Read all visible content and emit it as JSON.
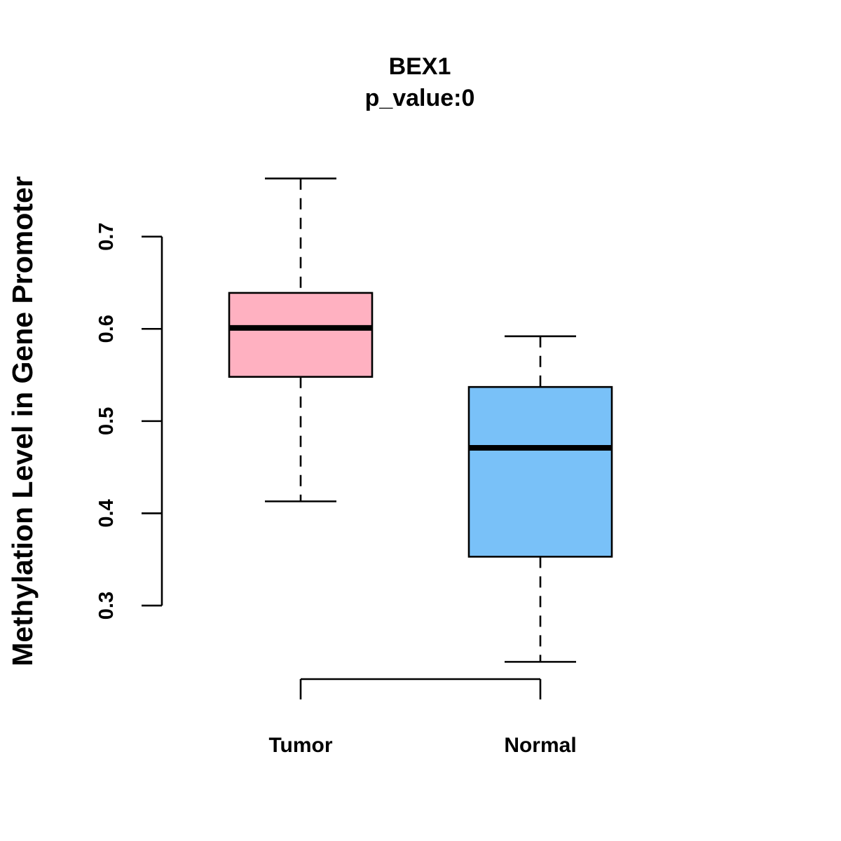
{
  "chart_data": {
    "type": "boxplot",
    "title": "BEX1",
    "subtitle": "p_value:0",
    "ylabel": "Methylation Level in Gene Promoter",
    "xlabel": "",
    "ylim": [
      0.2165,
      0.7833
    ],
    "yticks": [
      0.3,
      0.4,
      0.5,
      0.6,
      0.7
    ],
    "yticklabels": [
      "0.3",
      "0.4",
      "0.5",
      "0.6",
      "0.7"
    ],
    "grid": false,
    "legend": "none",
    "categories": [
      "Tumor",
      "Normal"
    ],
    "series": [
      {
        "category": "Tumor",
        "whisker_low": 0.413,
        "q1": 0.548,
        "median": 0.601,
        "q3": 0.639,
        "whisker_high": 0.763,
        "color": "#FFB1C1"
      },
      {
        "category": "Normal",
        "whisker_low": 0.239,
        "q1": 0.353,
        "median": 0.471,
        "q3": 0.537,
        "whisker_high": 0.592,
        "color": "#79C1F8"
      }
    ]
  }
}
